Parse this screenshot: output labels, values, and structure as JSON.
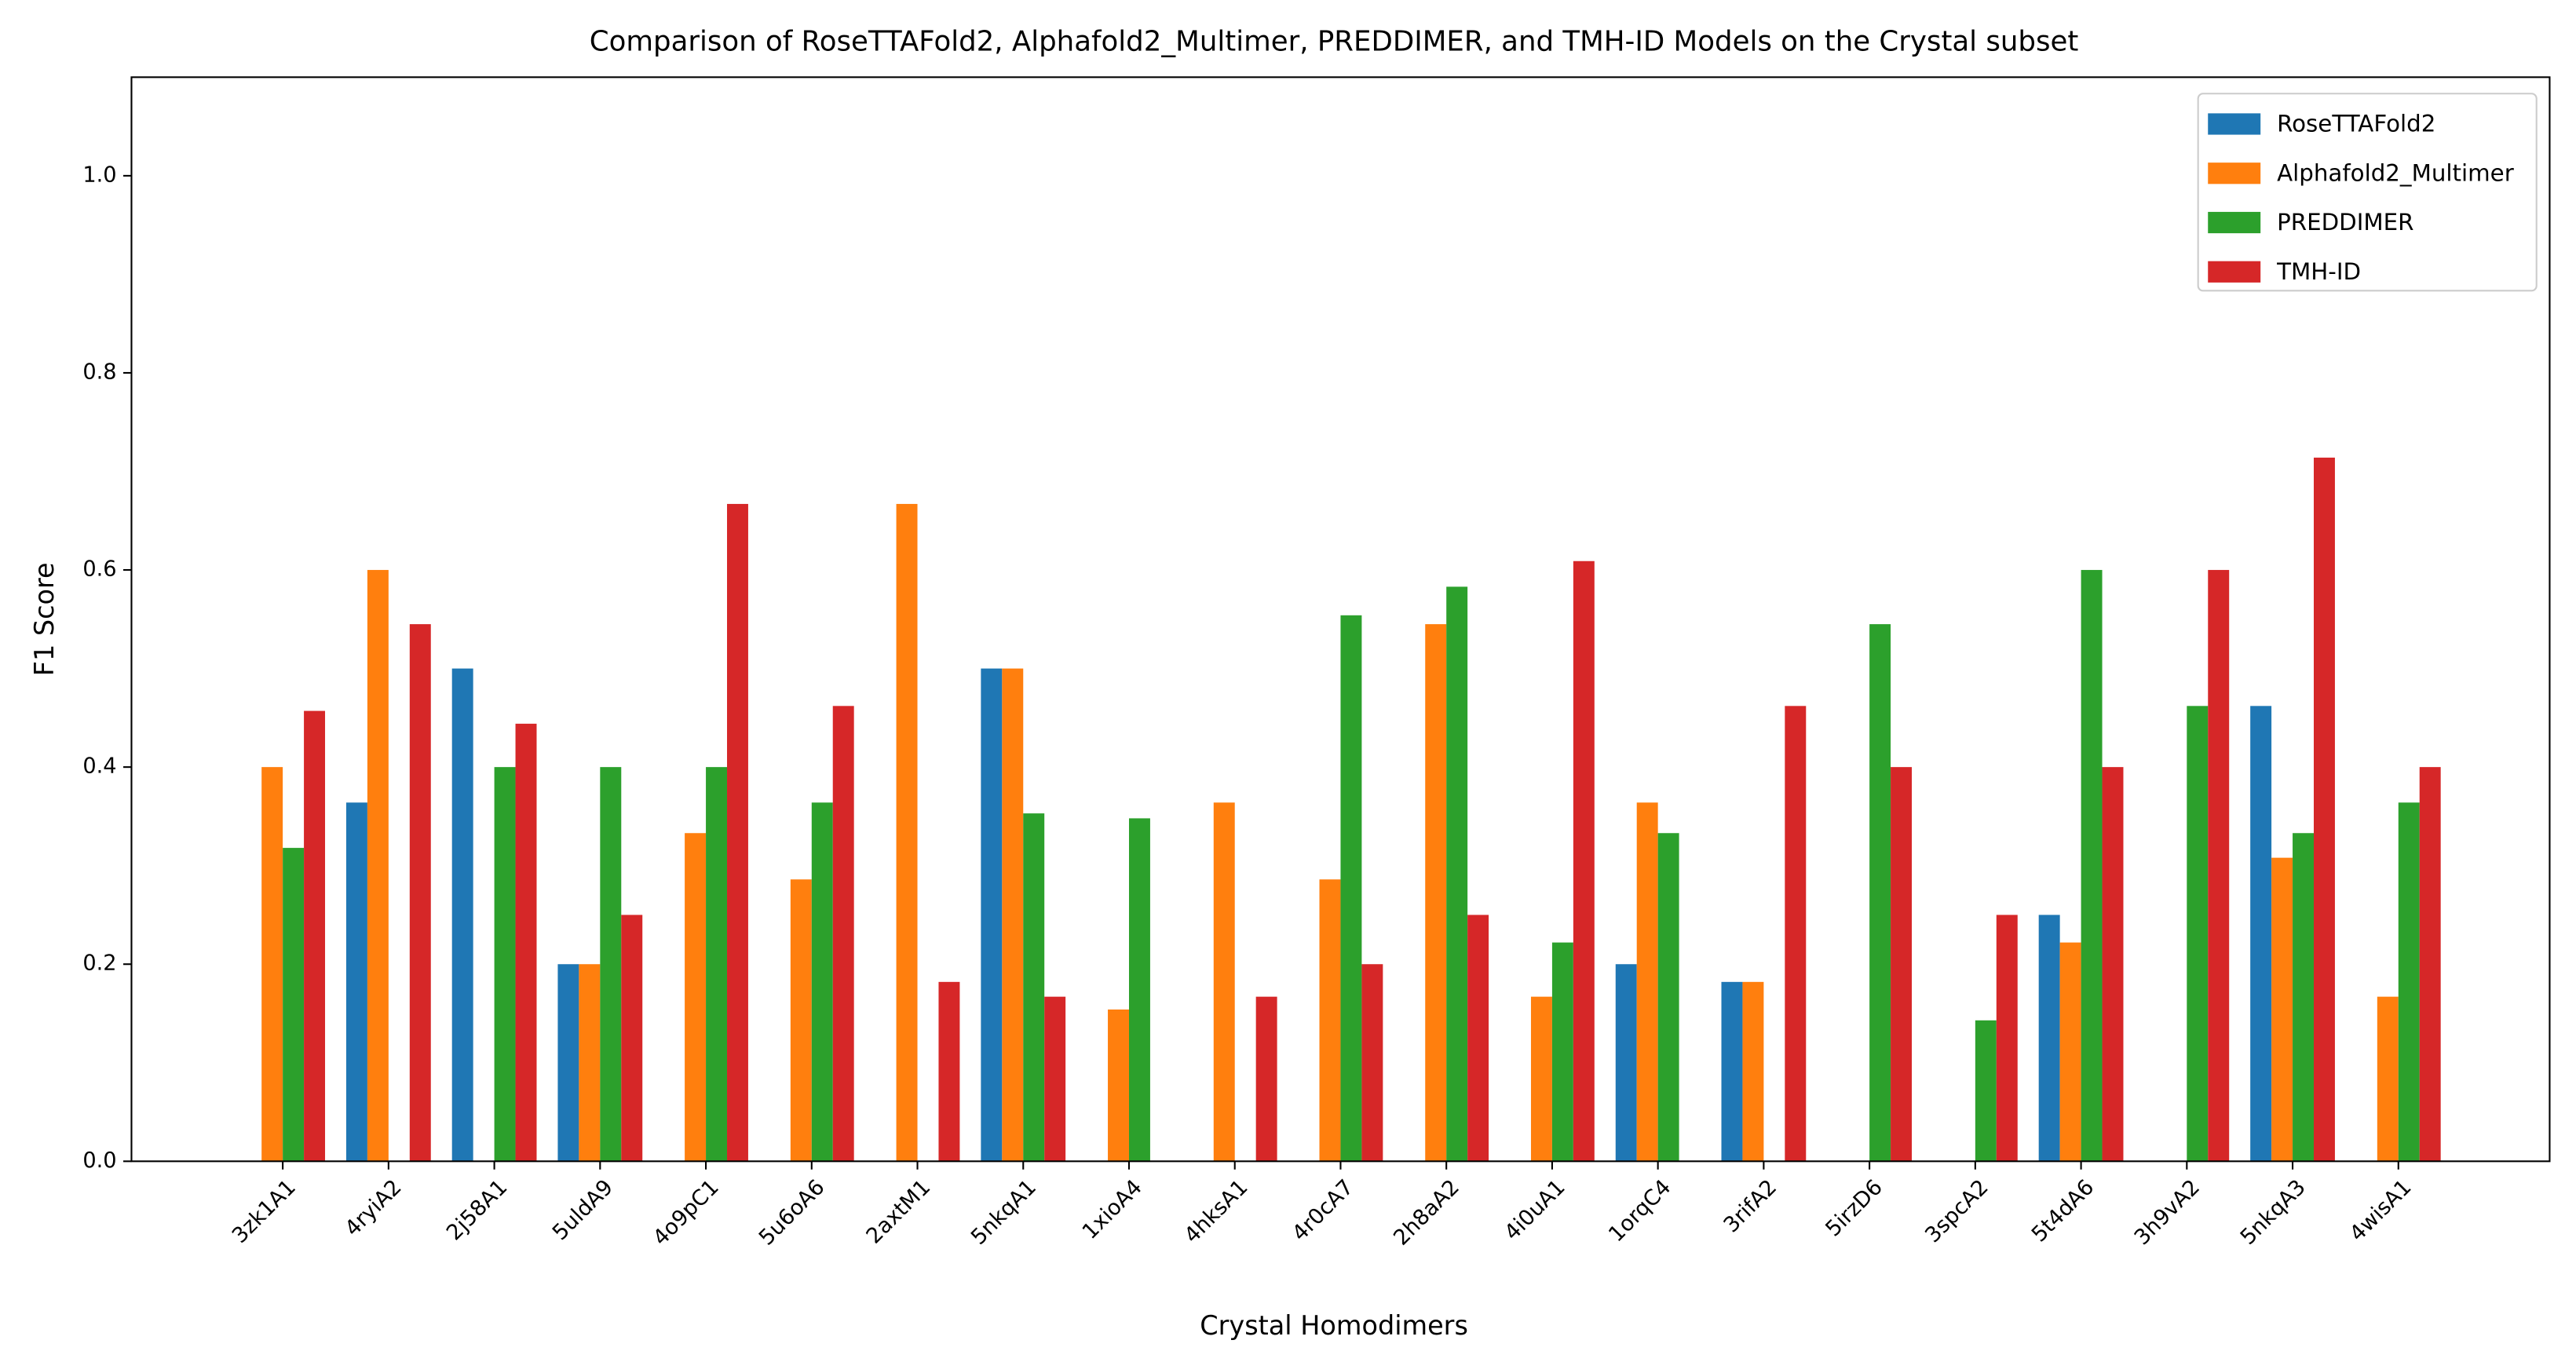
{
  "chart_data": {
    "type": "bar",
    "title": "Comparison of RoseTTAFold2, Alphafold2_Multimer, PREDDIMER, and TMH-ID Models on the Crystal subset",
    "x_label": "Crystal Homodimers",
    "y_label": "F1 Score",
    "categories": [
      "3zk1A1",
      "4ryiA2",
      "2j58A1",
      "5uldA9",
      "4o9pC1",
      "5u6oA6",
      "2axtM1",
      "5nkqA1",
      "1xioA4",
      "4hksA1",
      "4r0cA7",
      "2h8aA2",
      "4i0uA1",
      "1orqC4",
      "3rifA2",
      "5irzD6",
      "3spcA2",
      "5t4dA6",
      "3h9vA2",
      "5nkqA3",
      "4wisA1"
    ],
    "series": [
      {
        "name": "RoseTTAFold2",
        "color": "#1f77b4",
        "values": [
          0,
          0.364,
          0.5,
          0.2,
          0,
          0,
          0,
          0.5,
          0,
          0,
          0,
          0,
          0,
          0.2,
          0.182,
          0,
          0,
          0.25,
          0,
          0.462,
          0
        ]
      },
      {
        "name": "Alphafold2_Multimer",
        "color": "#ff7f0e",
        "values": [
          0.4,
          0.6,
          0,
          0.2,
          0.333,
          0.286,
          0.667,
          0.5,
          0.154,
          0.364,
          0.286,
          0.545,
          0.167,
          0.364,
          0.182,
          0,
          0,
          0.222,
          0,
          0.308,
          0.167
        ]
      },
      {
        "name": "PREDDIMER",
        "color": "#2ca02c",
        "values": [
          0.318,
          0,
          0.4,
          0.4,
          0.4,
          0.364,
          0,
          0.353,
          0.348,
          0,
          0.554,
          0.583,
          0.222,
          0.333,
          0,
          0.545,
          0.143,
          0.6,
          0.462,
          0.333,
          0.364
        ]
      },
      {
        "name": "TMH-ID",
        "color": "#d62728",
        "values": [
          0.457,
          0.545,
          0.444,
          0.25,
          0.667,
          0.462,
          0.182,
          0.167,
          0,
          0.167,
          0.2,
          0.25,
          0.609,
          0,
          0.462,
          0.4,
          0.25,
          0.4,
          0.6,
          0.714,
          0.4
        ]
      }
    ],
    "ylim": [
      0,
      1.1
    ],
    "yticks": [
      {
        "value": 0,
        "label": "0.0"
      },
      {
        "value": 0.2,
        "label": "0.2"
      },
      {
        "value": 0.4,
        "label": "0.4"
      },
      {
        "value": 0.6,
        "label": "0.6"
      },
      {
        "value": 0.8,
        "label": "0.8"
      },
      {
        "value": 1,
        "label": "1.0"
      }
    ],
    "legend": "upper right",
    "grid": false
  }
}
